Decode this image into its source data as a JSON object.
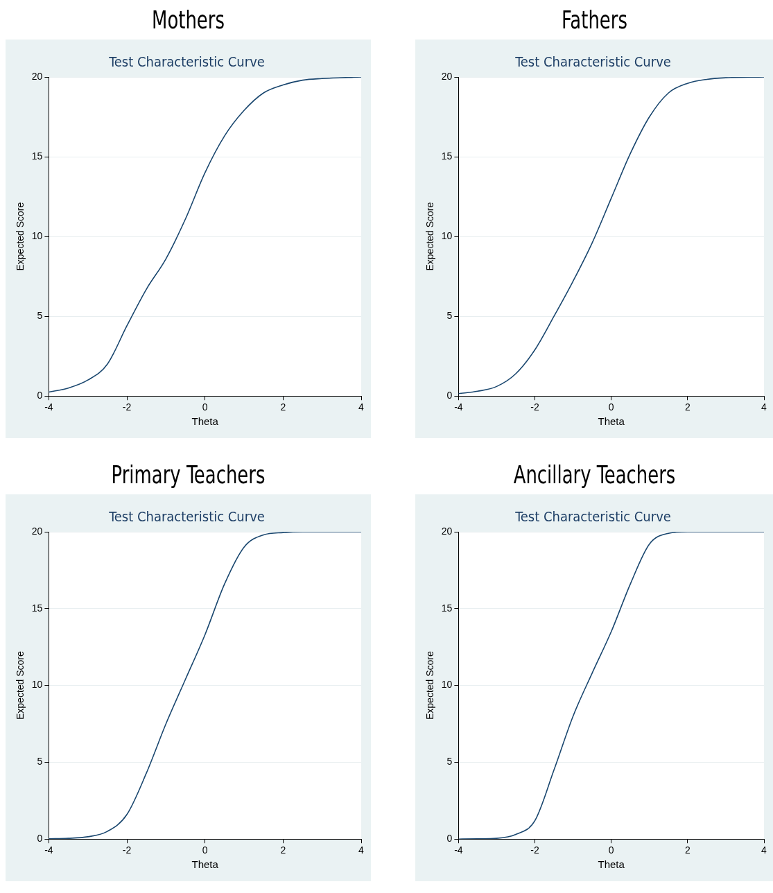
{
  "chart_data": [
    {
      "type": "line",
      "title": "Mothers",
      "subtitle": "Test Characteristic Curve",
      "xlabel": "Theta",
      "ylabel": "Expected Score",
      "xlim": [
        -4,
        4
      ],
      "xticks": [
        -4,
        -2,
        0,
        2,
        4
      ],
      "ylim": [
        0,
        20
      ],
      "yticks": [
        0,
        5,
        10,
        15,
        20
      ],
      "grid": "y",
      "legend": false,
      "marker": "none",
      "line_style": "solid",
      "series": [
        {
          "color": "#1a476f",
          "x": [
            -4,
            -3.5,
            -3,
            -2.5,
            -2,
            -1.5,
            -1,
            -0.5,
            0,
            0.5,
            1,
            1.5,
            2,
            2.5,
            3,
            4
          ],
          "values": [
            0.25,
            0.5,
            1.0,
            2.0,
            4.4,
            6.7,
            8.6,
            11.1,
            14.0,
            16.3,
            17.9,
            19.0,
            19.5,
            19.8,
            19.9,
            20
          ]
        }
      ]
    },
    {
      "type": "line",
      "title": "Fathers",
      "subtitle": "Test Characteristic Curve",
      "xlabel": "Theta",
      "ylabel": "Expected Score",
      "xlim": [
        -4,
        4
      ],
      "xticks": [
        -4,
        -2,
        0,
        2,
        4
      ],
      "ylim": [
        0,
        20
      ],
      "yticks": [
        0,
        5,
        10,
        15,
        20
      ],
      "grid": "y",
      "legend": false,
      "marker": "none",
      "line_style": "solid",
      "series": [
        {
          "color": "#1a476f",
          "x": [
            -4,
            -3.5,
            -3,
            -2.5,
            -2,
            -1.5,
            -1,
            -0.5,
            0,
            0.5,
            1,
            1.5,
            2,
            2.5,
            3,
            4
          ],
          "values": [
            0.15,
            0.3,
            0.6,
            1.4,
            2.9,
            5.0,
            7.2,
            9.6,
            12.4,
            15.2,
            17.5,
            19.0,
            19.6,
            19.85,
            19.95,
            20
          ]
        }
      ]
    },
    {
      "type": "line",
      "title": "Primary Teachers",
      "subtitle": "Test Characteristic Curve",
      "xlabel": "Theta",
      "ylabel": "Expected Score",
      "xlim": [
        -4,
        4
      ],
      "xticks": [
        -4,
        -2,
        0,
        2,
        4
      ],
      "ylim": [
        0,
        20
      ],
      "yticks": [
        0,
        5,
        10,
        15,
        20
      ],
      "grid": "y",
      "legend": false,
      "marker": "none",
      "line_style": "solid",
      "series": [
        {
          "color": "#1a476f",
          "x": [
            -4,
            -3.5,
            -3,
            -2.5,
            -2,
            -1.5,
            -1,
            -0.5,
            0,
            0.5,
            1,
            1.5,
            2,
            2.5,
            3,
            4
          ],
          "values": [
            0.02,
            0.05,
            0.15,
            0.5,
            1.6,
            4.3,
            7.5,
            10.4,
            13.3,
            16.6,
            19.0,
            19.8,
            19.95,
            20,
            20,
            20
          ]
        }
      ]
    },
    {
      "type": "line",
      "title": "Ancillary Teachers",
      "subtitle": "Test Characteristic Curve",
      "xlabel": "Theta",
      "ylabel": "Expected Score",
      "xlim": [
        -4,
        4
      ],
      "xticks": [
        -4,
        -2,
        0,
        2,
        4
      ],
      "ylim": [
        0,
        20
      ],
      "yticks": [
        0,
        5,
        10,
        15,
        20
      ],
      "grid": "y",
      "legend": false,
      "marker": "none",
      "line_style": "solid",
      "series": [
        {
          "color": "#1a476f",
          "x": [
            -4,
            -3.5,
            -3,
            -2.5,
            -2,
            -1.5,
            -1,
            -0.5,
            0,
            0.5,
            1,
            1.5,
            2,
            2.5,
            3,
            4
          ],
          "values": [
            0,
            0.02,
            0.05,
            0.3,
            1.2,
            4.5,
            8.0,
            10.8,
            13.5,
            16.6,
            19.2,
            19.9,
            20,
            20,
            20,
            20
          ]
        }
      ]
    }
  ]
}
